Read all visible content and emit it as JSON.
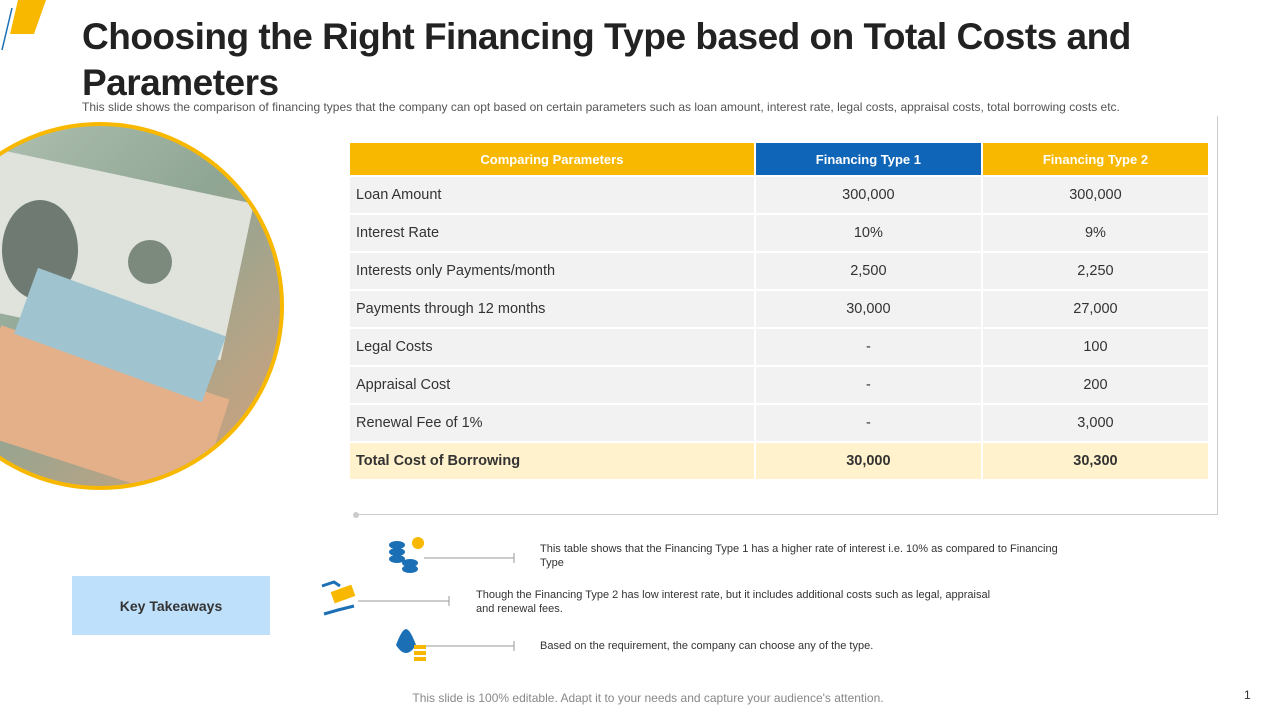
{
  "header": {
    "title": "Choosing the Right Financing Type based on Total Costs and Parameters",
    "subtitle": "This slide shows the comparison of financing types that the company can opt based on certain parameters such as loan amount, interest rate, legal costs, appraisal costs, total borrowing costs etc."
  },
  "table": {
    "columns": [
      "Comparing Parameters",
      "Financing Type 1",
      "Financing Type 2"
    ],
    "rows": [
      [
        "Loan Amount",
        "300,000",
        "300,000"
      ],
      [
        "Interest Rate",
        "10%",
        "9%"
      ],
      [
        "Interests only Payments/month",
        "2,500",
        "2,250"
      ],
      [
        "Payments through 12 months",
        "30,000",
        "27,000"
      ],
      [
        "Legal Costs",
        "-",
        "100"
      ],
      [
        "Appraisal Cost",
        "-",
        "200"
      ],
      [
        "Renewal Fee of 1%",
        "-",
        "3,000"
      ],
      [
        "Total Cost of Borrowing",
        "30,000",
        "30,300"
      ]
    ]
  },
  "takeaways": {
    "label": "Key Takeaways",
    "items": [
      "This table shows that the Financing Type 1 has a higher rate of interest i.e. 10% as compared to Financing Type",
      "Though the Financing Type 2 has low interest rate, but it includes additional costs such as legal, appraisal and renewal fees.",
      "Based on the requirement, the company can choose any of the type."
    ]
  },
  "footer": {
    "note": "This slide is 100% editable. Adapt it to your needs and capture your audience's attention.",
    "page": "1"
  }
}
